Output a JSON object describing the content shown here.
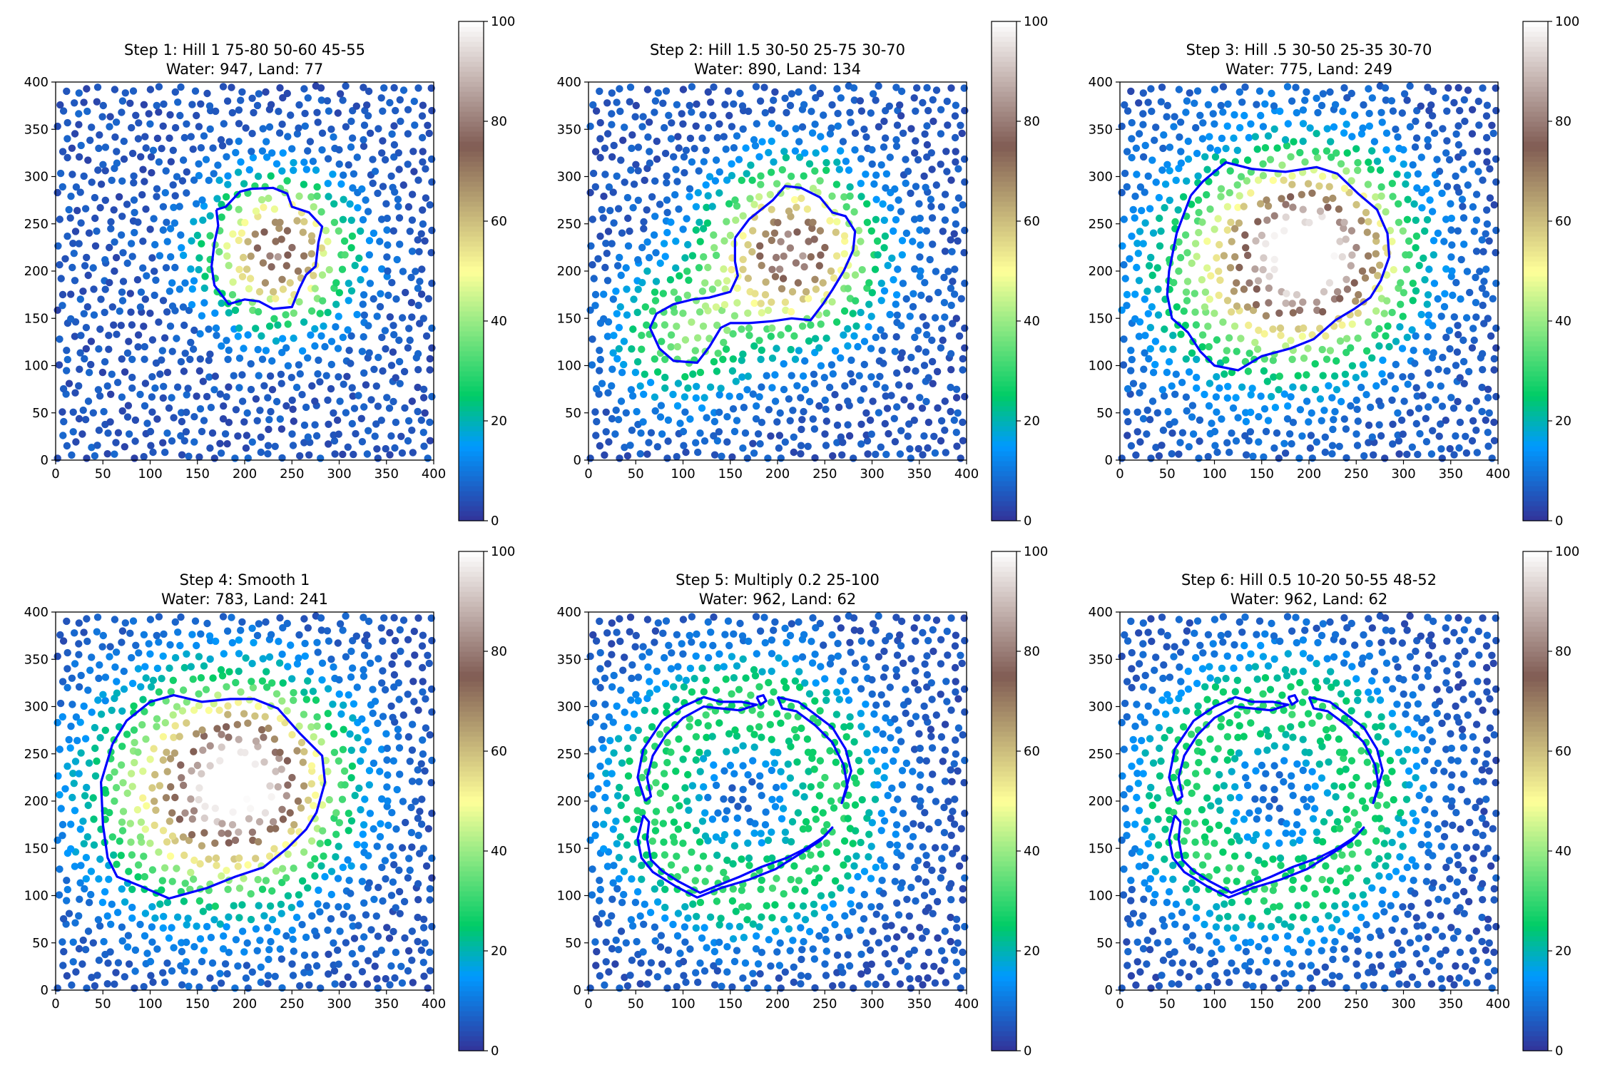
{
  "figure": {
    "colormap": "terrain",
    "colormap_stops": [
      {
        "value": 0,
        "color": "#333399"
      },
      {
        "value": 15,
        "color": "#0099ff"
      },
      {
        "value": 25,
        "color": "#00cc66"
      },
      {
        "value": 50,
        "color": "#ffff99"
      },
      {
        "value": 75,
        "color": "#805c54"
      },
      {
        "value": 100,
        "color": "#ffffff"
      }
    ],
    "coastline_color": "#0000ff",
    "land_threshold": 20
  },
  "chart_data": [
    {
      "type": "scatter",
      "title": "Step 1: Hill 1 75-80 50-60 45-55",
      "subtitle": "Water: 947, Land: 77",
      "xlim": [
        0,
        400
      ],
      "ylim": [
        0,
        400
      ],
      "xticks": [
        "0",
        "50",
        "100",
        "150",
        "200",
        "250",
        "300",
        "350",
        "400"
      ],
      "yticks": [
        "0",
        "50",
        "100",
        "150",
        "200",
        "250",
        "300",
        "350",
        "400"
      ],
      "colorbar": {
        "range": [
          0,
          100
        ],
        "ticks": [
          "0",
          "20",
          "40",
          "60",
          "80",
          "100"
        ]
      },
      "height_field": {
        "kind": "hill",
        "base": 5,
        "gradient": 0,
        "blobs": [
          {
            "cx": 235,
            "cy": 220,
            "peak": 75,
            "radius": 48
          }
        ],
        "shape_noise": 0.08,
        "seed": 1
      },
      "coastline": [
        [
          170,
          265
        ],
        [
          180,
          268
        ],
        [
          195,
          284
        ],
        [
          207,
          287
        ],
        [
          230,
          288
        ],
        [
          245,
          282
        ],
        [
          250,
          268
        ],
        [
          268,
          262
        ],
        [
          282,
          247
        ],
        [
          278,
          230
        ],
        [
          275,
          205
        ],
        [
          265,
          196
        ],
        [
          258,
          182
        ],
        [
          250,
          162
        ],
        [
          230,
          160
        ],
        [
          215,
          168
        ],
        [
          200,
          170
        ],
        [
          183,
          165
        ],
        [
          168,
          185
        ],
        [
          165,
          205
        ],
        [
          168,
          230
        ],
        [
          172,
          248
        ]
      ]
    },
    {
      "type": "scatter",
      "title": "Step 2: Hill 1.5 30-50 25-75 30-70",
      "subtitle": "Water: 890, Land: 134",
      "xlim": [
        0,
        400
      ],
      "ylim": [
        0,
        400
      ],
      "xticks": [
        "0",
        "50",
        "100",
        "150",
        "200",
        "250",
        "300",
        "350",
        "400"
      ],
      "yticks": [
        "0",
        "50",
        "100",
        "150",
        "200",
        "250",
        "300",
        "350",
        "400"
      ],
      "colorbar": {
        "range": [
          0,
          100
        ],
        "ticks": [
          "0",
          "20",
          "40",
          "60",
          "80",
          "100"
        ]
      },
      "height_field": {
        "kind": "hill",
        "base": 5,
        "gradient": 0,
        "blobs": [
          {
            "cx": 215,
            "cy": 220,
            "peak": 78,
            "radius": 55
          },
          {
            "cx": 100,
            "cy": 135,
            "peak": 32,
            "radius": 48
          }
        ],
        "shape_noise": 0.08,
        "seed": 2
      },
      "coastline": [
        [
          155,
          235
        ],
        [
          170,
          255
        ],
        [
          195,
          275
        ],
        [
          208,
          290
        ],
        [
          225,
          288
        ],
        [
          245,
          278
        ],
        [
          258,
          262
        ],
        [
          272,
          258
        ],
        [
          282,
          242
        ],
        [
          280,
          222
        ],
        [
          270,
          200
        ],
        [
          258,
          180
        ],
        [
          248,
          165
        ],
        [
          235,
          148
        ],
        [
          215,
          150
        ],
        [
          195,
          147
        ],
        [
          170,
          145
        ],
        [
          150,
          145
        ],
        [
          140,
          140
        ],
        [
          128,
          120
        ],
        [
          115,
          103
        ],
        [
          90,
          105
        ],
        [
          75,
          118
        ],
        [
          65,
          140
        ],
        [
          72,
          155
        ],
        [
          90,
          165
        ],
        [
          110,
          170
        ],
        [
          128,
          172
        ],
        [
          150,
          178
        ],
        [
          158,
          195
        ],
        [
          155,
          210
        ]
      ]
    },
    {
      "type": "scatter",
      "title": "Step 3: Hill .5 30-50 25-35 30-70",
      "subtitle": "Water: 775, Land: 249",
      "xlim": [
        0,
        400
      ],
      "ylim": [
        0,
        400
      ],
      "xticks": [
        "0",
        "50",
        "100",
        "150",
        "200",
        "250",
        "300",
        "350",
        "400"
      ],
      "yticks": [
        "0",
        "50",
        "100",
        "150",
        "200",
        "250",
        "300",
        "350",
        "400"
      ],
      "colorbar": {
        "range": [
          0,
          100
        ],
        "ticks": [
          "0",
          "20",
          "40",
          "60",
          "80",
          "100"
        ]
      },
      "height_field": {
        "kind": "hill",
        "base": 5,
        "gradient": 0,
        "blobs": [
          {
            "cx": 210,
            "cy": 220,
            "peak": 80,
            "radius": 60
          },
          {
            "cx": 145,
            "cy": 200,
            "peak": 40,
            "radius": 78
          }
        ],
        "shape_noise": 0.06,
        "seed": 3
      },
      "coastline": [
        [
          75,
          280
        ],
        [
          88,
          295
        ],
        [
          112,
          315
        ],
        [
          140,
          308
        ],
        [
          175,
          305
        ],
        [
          208,
          310
        ],
        [
          230,
          303
        ],
        [
          252,
          282
        ],
        [
          272,
          265
        ],
        [
          283,
          240
        ],
        [
          285,
          215
        ],
        [
          276,
          190
        ],
        [
          265,
          172
        ],
        [
          248,
          160
        ],
        [
          228,
          148
        ],
        [
          205,
          128
        ],
        [
          180,
          118
        ],
        [
          150,
          110
        ],
        [
          125,
          95
        ],
        [
          100,
          100
        ],
        [
          85,
          115
        ],
        [
          72,
          135
        ],
        [
          55,
          150
        ],
        [
          50,
          175
        ],
        [
          52,
          200
        ],
        [
          60,
          240
        ]
      ]
    },
    {
      "type": "scatter",
      "title": "Step 4: Smooth 1",
      "subtitle": "Water: 783, Land: 241",
      "xlim": [
        0,
        400
      ],
      "ylim": [
        0,
        400
      ],
      "xticks": [
        "0",
        "50",
        "100",
        "150",
        "200",
        "250",
        "300",
        "350",
        "400"
      ],
      "yticks": [
        "0",
        "50",
        "100",
        "150",
        "200",
        "250",
        "300",
        "350",
        "400"
      ],
      "colorbar": {
        "range": [
          0,
          100
        ],
        "ticks": [
          "0",
          "20",
          "40",
          "60",
          "80",
          "100"
        ]
      },
      "height_field": {
        "kind": "hill",
        "base": 5,
        "gradient": 0,
        "blobs": [
          {
            "cx": 205,
            "cy": 220,
            "peak": 72,
            "radius": 62
          },
          {
            "cx": 145,
            "cy": 205,
            "peak": 40,
            "radius": 80
          }
        ],
        "shape_noise": 0.05,
        "seed": 4
      },
      "coastline": [
        [
          60,
          260
        ],
        [
          75,
          285
        ],
        [
          100,
          305
        ],
        [
          125,
          312
        ],
        [
          155,
          305
        ],
        [
          185,
          308
        ],
        [
          210,
          308
        ],
        [
          235,
          298
        ],
        [
          258,
          272
        ],
        [
          282,
          248
        ],
        [
          285,
          220
        ],
        [
          276,
          188
        ],
        [
          265,
          170
        ],
        [
          245,
          150
        ],
        [
          220,
          130
        ],
        [
          190,
          120
        ],
        [
          160,
          108
        ],
        [
          120,
          97
        ],
        [
          90,
          110
        ],
        [
          65,
          120
        ],
        [
          55,
          140
        ],
        [
          50,
          175
        ],
        [
          48,
          220
        ]
      ]
    },
    {
      "type": "scatter",
      "title": "Step 5: Multiply 0.2 25-100",
      "subtitle": "Water: 962, Land: 62",
      "xlim": [
        0,
        400
      ],
      "ylim": [
        0,
        400
      ],
      "xticks": [
        "0",
        "50",
        "100",
        "150",
        "200",
        "250",
        "300",
        "350",
        "400"
      ],
      "yticks": [
        "0",
        "50",
        "100",
        "150",
        "200",
        "250",
        "300",
        "350",
        "400"
      ],
      "colorbar": {
        "range": [
          0,
          100
        ],
        "ticks": [
          "0",
          "20",
          "40",
          "60",
          "80",
          "100"
        ]
      },
      "height_field": {
        "kind": "ring",
        "base": 5,
        "gradient": 0,
        "ring": {
          "cx": 165,
          "cy": 205,
          "inner_radius": 85,
          "outer_radius": 110,
          "peak": 24
        },
        "shape_noise": 0.05,
        "seed": 5
      },
      "coastline_segments": [
        [
          [
            60,
            200
          ],
          [
            52,
            225
          ],
          [
            58,
            255
          ],
          [
            78,
            285
          ],
          [
            100,
            300
          ],
          [
            122,
            310
          ],
          [
            140,
            305
          ],
          [
            162,
            305
          ],
          [
            178,
            302
          ],
          [
            160,
            296
          ],
          [
            140,
            298
          ],
          [
            122,
            300
          ],
          [
            100,
            288
          ],
          [
            82,
            270
          ],
          [
            68,
            248
          ],
          [
            62,
            225
          ],
          [
            66,
            205
          ],
          [
            60,
            200
          ]
        ],
        [
          [
            58,
            185
          ],
          [
            52,
            160
          ],
          [
            56,
            140
          ],
          [
            68,
            125
          ],
          [
            92,
            110
          ],
          [
            115,
            98
          ],
          [
            140,
            108
          ],
          [
            170,
            117
          ],
          [
            198,
            128
          ],
          [
            225,
            145
          ],
          [
            245,
            158
          ],
          [
            258,
            172
          ],
          [
            250,
            163
          ],
          [
            230,
            150
          ],
          [
            210,
            140
          ],
          [
            182,
            130
          ],
          [
            160,
            120
          ],
          [
            140,
            112
          ],
          [
            118,
            103
          ],
          [
            95,
            115
          ],
          [
            78,
            126
          ],
          [
            66,
            138
          ],
          [
            62,
            160
          ],
          [
            64,
            178
          ],
          [
            58,
            185
          ]
        ],
        [
          [
            200,
            310
          ],
          [
            222,
            305
          ],
          [
            242,
            290
          ],
          [
            258,
            278
          ],
          [
            272,
            255
          ],
          [
            278,
            232
          ],
          [
            272,
            212
          ],
          [
            268,
            198
          ],
          [
            274,
            215
          ],
          [
            270,
            238
          ],
          [
            258,
            262
          ],
          [
            240,
            280
          ],
          [
            220,
            295
          ],
          [
            205,
            298
          ],
          [
            200,
            310
          ]
        ],
        [
          [
            178,
            310
          ],
          [
            185,
            312
          ],
          [
            188,
            306
          ],
          [
            182,
            302
          ],
          [
            178,
            310
          ]
        ]
      ]
    },
    {
      "type": "scatter",
      "title": "Step 6: Hill 0.5 10-20 50-55 48-52",
      "subtitle": "Water: 962, Land: 62",
      "xlim": [
        0,
        400
      ],
      "ylim": [
        0,
        400
      ],
      "xticks": [
        "0",
        "50",
        "100",
        "150",
        "200",
        "250",
        "300",
        "350",
        "400"
      ],
      "yticks": [
        "0",
        "50",
        "100",
        "150",
        "200",
        "250",
        "300",
        "350",
        "400"
      ],
      "colorbar": {
        "range": [
          0,
          100
        ],
        "ticks": [
          "0",
          "20",
          "40",
          "60",
          "80",
          "100"
        ]
      },
      "height_field": {
        "kind": "ring",
        "base": 5,
        "gradient": 0,
        "ring": {
          "cx": 165,
          "cy": 205,
          "inner_radius": 85,
          "outer_radius": 110,
          "peak": 24
        },
        "shape_noise": 0.05,
        "seed": 6
      },
      "coastline_segments": [
        [
          [
            60,
            200
          ],
          [
            52,
            225
          ],
          [
            58,
            255
          ],
          [
            78,
            285
          ],
          [
            100,
            300
          ],
          [
            122,
            310
          ],
          [
            140,
            305
          ],
          [
            162,
            305
          ],
          [
            178,
            302
          ],
          [
            160,
            296
          ],
          [
            140,
            298
          ],
          [
            122,
            300
          ],
          [
            100,
            288
          ],
          [
            82,
            270
          ],
          [
            68,
            248
          ],
          [
            62,
            225
          ],
          [
            66,
            205
          ],
          [
            60,
            200
          ]
        ],
        [
          [
            58,
            185
          ],
          [
            52,
            160
          ],
          [
            56,
            140
          ],
          [
            68,
            125
          ],
          [
            92,
            110
          ],
          [
            115,
            98
          ],
          [
            140,
            108
          ],
          [
            170,
            117
          ],
          [
            198,
            128
          ],
          [
            225,
            145
          ],
          [
            245,
            158
          ],
          [
            258,
            172
          ],
          [
            250,
            163
          ],
          [
            230,
            150
          ],
          [
            210,
            140
          ],
          [
            182,
            130
          ],
          [
            160,
            120
          ],
          [
            140,
            112
          ],
          [
            118,
            103
          ],
          [
            95,
            115
          ],
          [
            78,
            126
          ],
          [
            66,
            138
          ],
          [
            62,
            160
          ],
          [
            64,
            178
          ],
          [
            58,
            185
          ]
        ],
        [
          [
            200,
            310
          ],
          [
            222,
            305
          ],
          [
            242,
            290
          ],
          [
            258,
            278
          ],
          [
            272,
            255
          ],
          [
            278,
            232
          ],
          [
            272,
            212
          ],
          [
            268,
            198
          ],
          [
            274,
            215
          ],
          [
            270,
            238
          ],
          [
            258,
            262
          ],
          [
            240,
            280
          ],
          [
            220,
            295
          ],
          [
            205,
            298
          ],
          [
            200,
            310
          ]
        ],
        [
          [
            178,
            310
          ],
          [
            185,
            312
          ],
          [
            188,
            306
          ],
          [
            182,
            302
          ],
          [
            178,
            310
          ]
        ]
      ]
    }
  ]
}
